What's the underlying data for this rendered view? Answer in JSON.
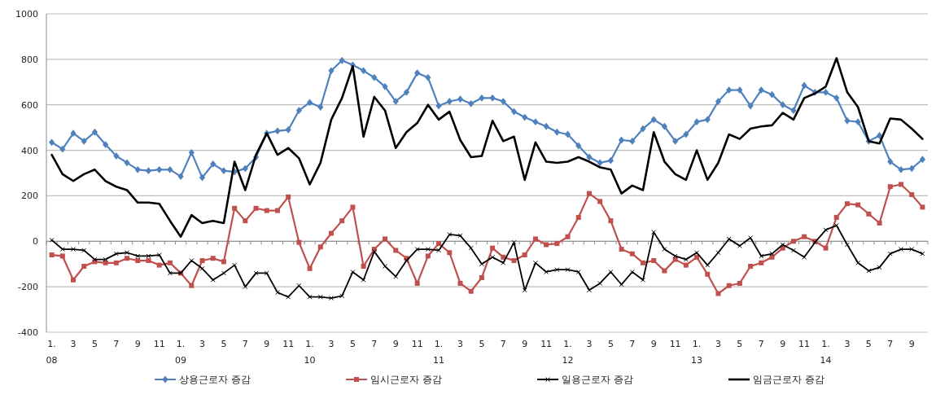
{
  "chart_data": {
    "type": "line",
    "categories": [
      "1.\n08",
      null,
      "3",
      null,
      "5",
      null,
      "7",
      null,
      "9",
      null,
      "11",
      null,
      "1.\n09",
      null,
      "3",
      null,
      "5",
      null,
      "7",
      null,
      "9",
      null,
      "11",
      null,
      "1.\n10",
      null,
      "3",
      null,
      "5",
      null,
      "7",
      null,
      "9",
      null,
      "11",
      null,
      "1.\n11",
      null,
      "3",
      null,
      "5",
      null,
      "7",
      null,
      "9",
      null,
      "11",
      null,
      "1.\n12",
      null,
      "3",
      null,
      "5",
      null,
      "7",
      null,
      "9",
      null,
      "11",
      null,
      "1.\n13",
      null,
      "3",
      null,
      "5",
      null,
      "7",
      null,
      "9",
      null,
      "11",
      null,
      "1.\n14",
      null,
      "3",
      null,
      "5",
      null,
      "7",
      null,
      "9",
      null
    ],
    "ylim": [
      -400,
      1000
    ],
    "yticks": [
      -400,
      -200,
      0,
      200,
      400,
      600,
      800,
      1000
    ],
    "grid": "y",
    "legend": "bottom",
    "series": [
      {
        "name": "상용근로자 증감",
        "color": "#4f81bd",
        "marker": "diamond",
        "values": [
          435,
          405,
          475,
          440,
          480,
          425,
          375,
          345,
          315,
          310,
          315,
          315,
          285,
          390,
          280,
          340,
          310,
          305,
          320,
          370,
          475,
          485,
          490,
          575,
          610,
          590,
          750,
          795,
          775,
          750,
          720,
          680,
          615,
          655,
          740,
          720,
          595,
          615,
          625,
          605,
          630,
          630,
          615,
          570,
          545,
          525,
          505,
          480,
          470,
          420,
          370,
          345,
          355,
          445,
          440,
          495,
          535,
          505,
          440,
          470,
          525,
          535,
          615,
          665,
          665,
          595,
          665,
          645,
          600,
          575,
          685,
          655,
          655,
          630,
          530,
          525,
          440,
          465,
          350,
          315,
          320,
          360
        ]
      },
      {
        "name": "임시근로자 증감",
        "color": "#c0504d",
        "marker": "square",
        "values": [
          -60,
          -65,
          -170,
          -110,
          -90,
          -95,
          -95,
          -75,
          -85,
          -85,
          -105,
          -95,
          -140,
          -195,
          -85,
          -75,
          -90,
          145,
          90,
          145,
          135,
          135,
          195,
          -5,
          -120,
          -25,
          35,
          90,
          150,
          -110,
          -35,
          10,
          -40,
          -75,
          -185,
          -65,
          -10,
          -50,
          -185,
          -220,
          -160,
          -30,
          -70,
          -85,
          -60,
          10,
          -15,
          -10,
          20,
          105,
          210,
          175,
          90,
          -35,
          -55,
          -95,
          -85,
          -130,
          -80,
          -105,
          -70,
          -145,
          -230,
          -195,
          -185,
          -110,
          -95,
          -70,
          -30,
          0,
          20,
          0,
          -30,
          105,
          165,
          160,
          120,
          80,
          240,
          250,
          205,
          150
        ]
      },
      {
        "name": "일용근로자 증감",
        "color": "#000000",
        "marker": "cross",
        "values": [
          5,
          -35,
          -35,
          -40,
          -80,
          -80,
          -55,
          -50,
          -65,
          -65,
          -60,
          -140,
          -140,
          -85,
          -120,
          -170,
          -140,
          -105,
          -200,
          -140,
          -140,
          -225,
          -245,
          -195,
          -245,
          -245,
          -250,
          -240,
          -135,
          -170,
          -45,
          -110,
          -155,
          -85,
          -35,
          -35,
          -40,
          30,
          25,
          -30,
          -100,
          -70,
          -95,
          -5,
          -215,
          -95,
          -135,
          -125,
          -125,
          -135,
          -215,
          -185,
          -135,
          -190,
          -135,
          -170,
          40,
          -35,
          -65,
          -80,
          -50,
          -105,
          -50,
          10,
          -20,
          15,
          -65,
          -55,
          -15,
          -40,
          -70,
          -5,
          50,
          70,
          -15,
          -95,
          -130,
          -115,
          -55,
          -35,
          -35,
          -55
        ]
      },
      {
        "name": "임금근로자 증감",
        "color": "#000000",
        "marker": "none",
        "values": [
          380,
          295,
          265,
          295,
          315,
          265,
          240,
          225,
          170,
          170,
          165,
          90,
          20,
          115,
          80,
          90,
          80,
          350,
          225,
          380,
          475,
          380,
          410,
          365,
          250,
          345,
          535,
          630,
          770,
          460,
          635,
          575,
          410,
          480,
          520,
          600,
          535,
          570,
          445,
          370,
          375,
          530,
          440,
          460,
          270,
          435,
          350,
          345,
          350,
          370,
          350,
          325,
          315,
          210,
          245,
          225,
          480,
          350,
          295,
          270,
          400,
          270,
          345,
          470,
          450,
          495,
          505,
          510,
          565,
          535,
          630,
          650,
          680,
          805,
          655,
          590,
          440,
          430,
          540,
          535,
          495,
          450
        ]
      }
    ]
  }
}
